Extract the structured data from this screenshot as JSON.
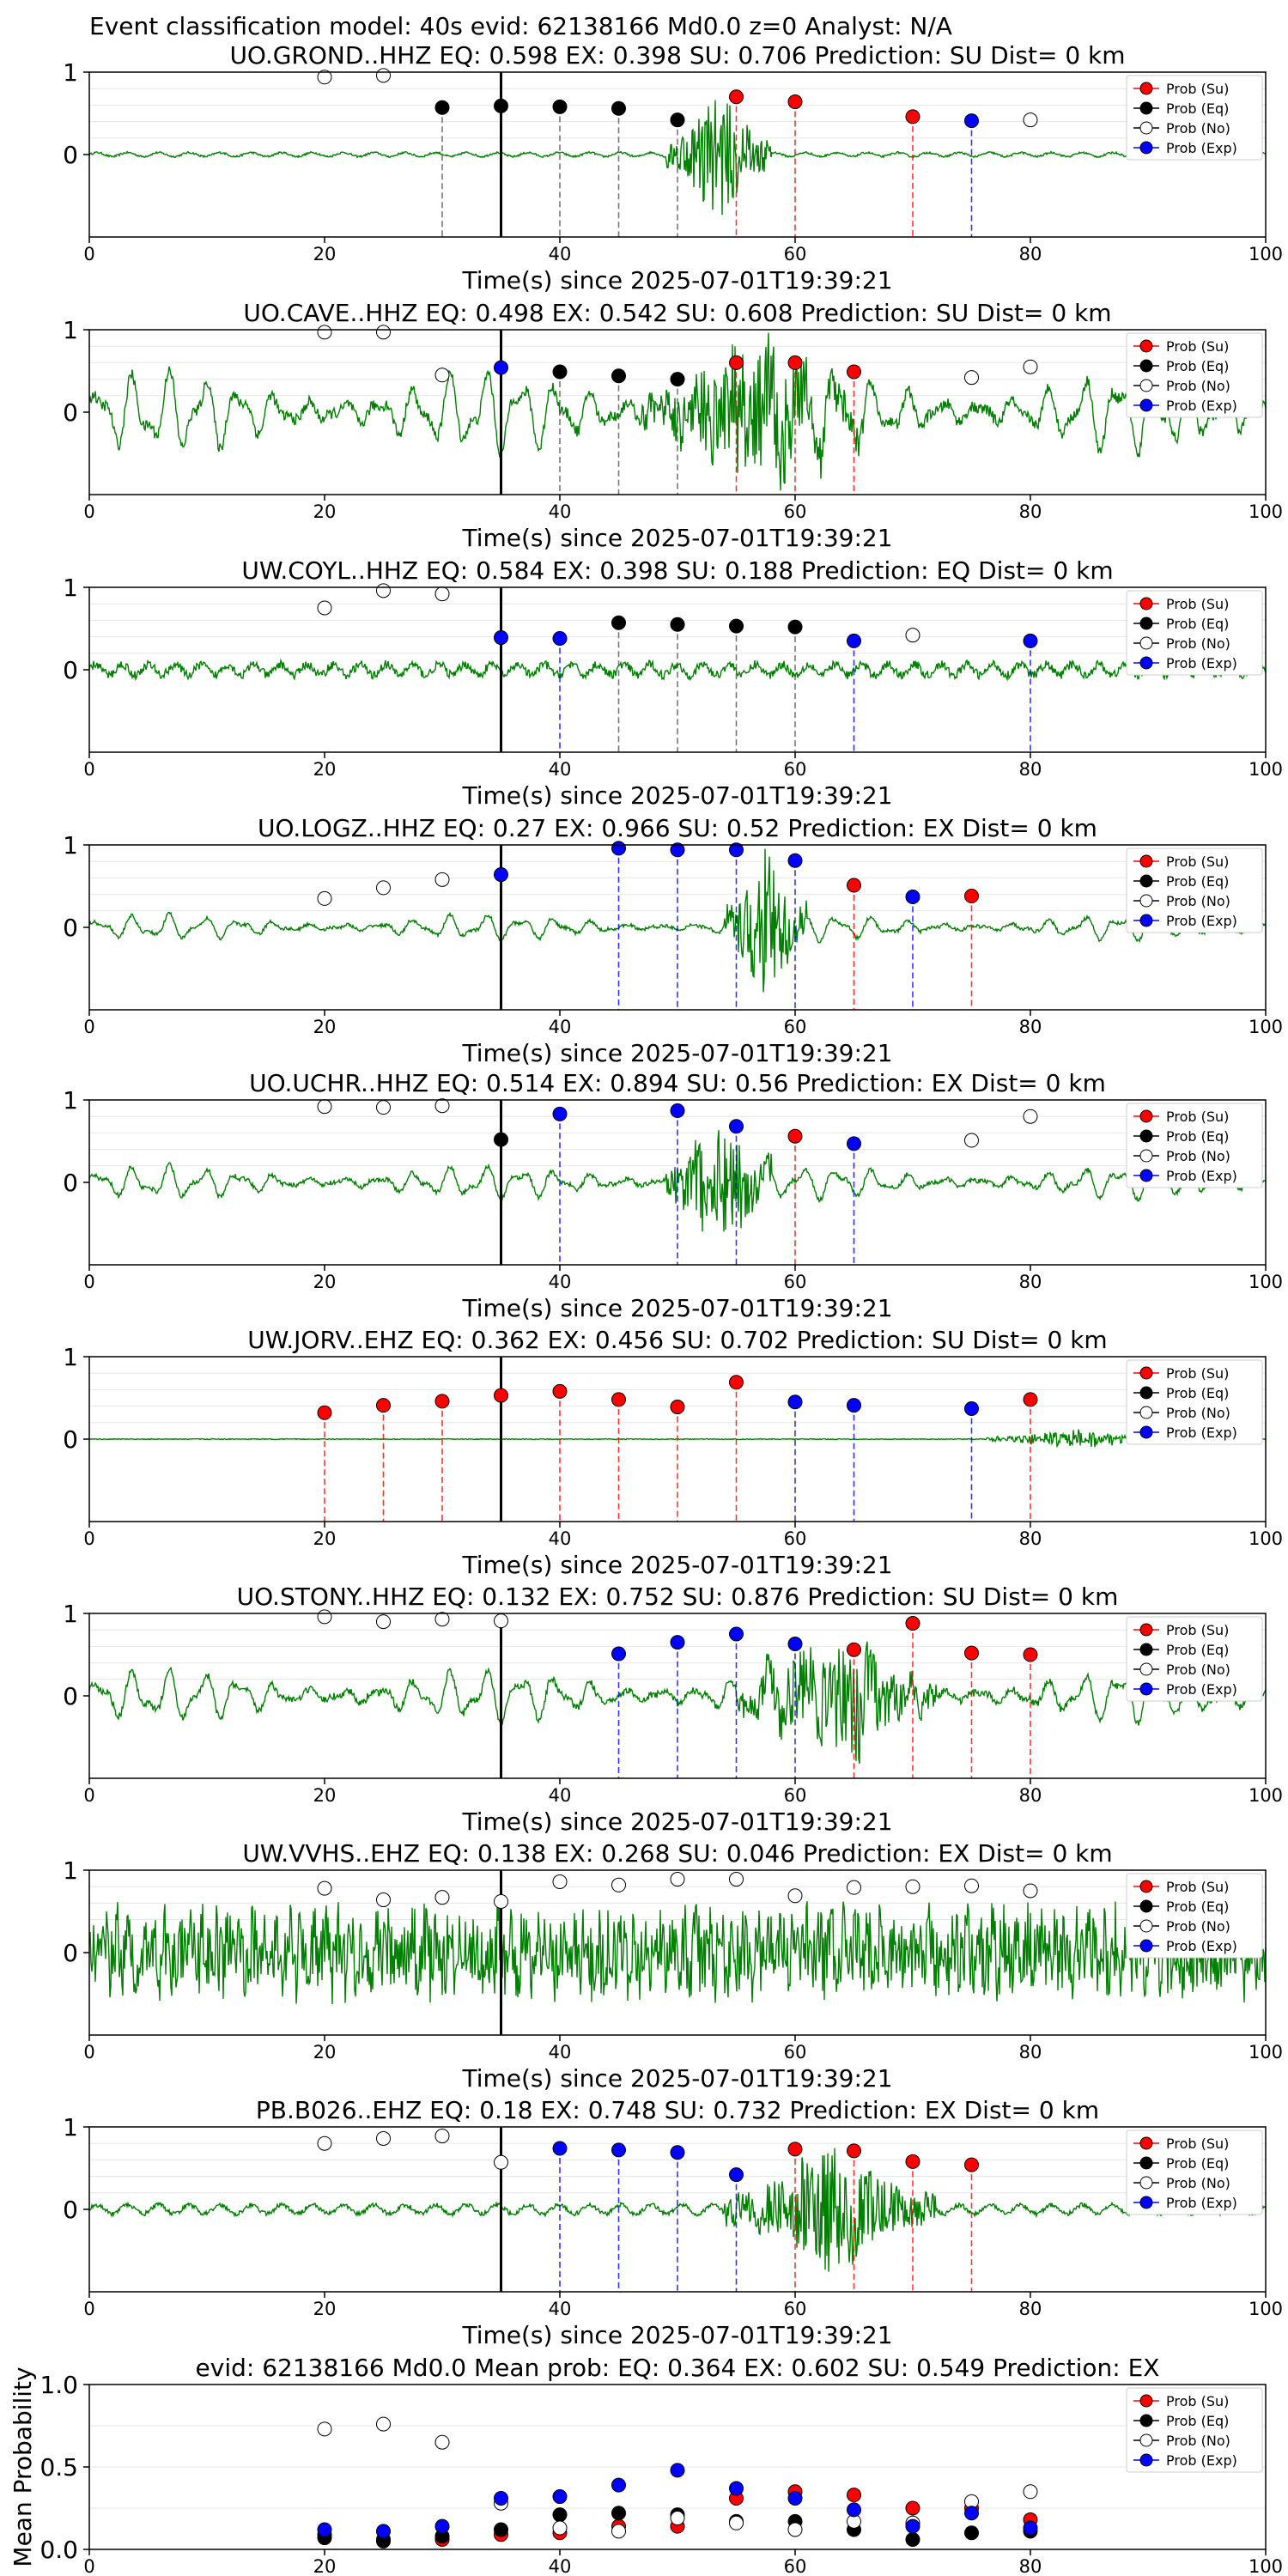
{
  "suptitle": "Event classification model: 40s evid: 62138166 Md0.0 z=0 Analyst: N/A",
  "xlabel": "Time(s) since 2025-07-01T19:39:21",
  "legend": [
    "Prob (Su)",
    "Prob (Eq)",
    "Prob (No)",
    "Prob (Exp)"
  ],
  "colors": {
    "su": "#ff0000",
    "eq": "#000000",
    "no": "#ffffff",
    "exp": "#0000ff",
    "trace": "#008000",
    "su_line": "#ff0000",
    "eq_line": "#555555",
    "exp_line": "#0000ff"
  },
  "chart_data": [
    {
      "type": "scatter",
      "title": "UO.GROND..HHZ   EQ: 0.598  EX: 0.398  SU: 0.706   Prediction: SU    Dist= 0 km",
      "xlim": [
        0,
        100
      ],
      "ylim": [
        -1,
        1
      ],
      "xticks": [
        0,
        20,
        40,
        60,
        80,
        100
      ],
      "yticks": [
        0,
        1
      ],
      "trace": {
        "style": "burst",
        "amp": 0.04,
        "burst": [
          49,
          58
        ],
        "burst_amp": 0.8
      },
      "event_line": 35,
      "points": [
        {
          "x": 20,
          "p": 0.94,
          "cls": "no"
        },
        {
          "x": 25,
          "p": 0.96,
          "cls": "no"
        },
        {
          "x": 30,
          "p": 0.57,
          "cls": "eq"
        },
        {
          "x": 35,
          "p": 0.59,
          "cls": "eq"
        },
        {
          "x": 40,
          "p": 0.58,
          "cls": "eq"
        },
        {
          "x": 45,
          "p": 0.56,
          "cls": "eq"
        },
        {
          "x": 50,
          "p": 0.42,
          "cls": "eq"
        },
        {
          "x": 55,
          "p": 0.7,
          "cls": "su"
        },
        {
          "x": 60,
          "p": 0.64,
          "cls": "su"
        },
        {
          "x": 70,
          "p": 0.46,
          "cls": "su"
        },
        {
          "x": 75,
          "p": 0.41,
          "cls": "exp"
        },
        {
          "x": 80,
          "p": 0.42,
          "cls": "no"
        }
      ]
    },
    {
      "type": "scatter",
      "title": "UO.CAVE..HHZ  EQ: 0.498  EX: 0.542  SU: 0.608   Prediction: SU    Dist= 0 km",
      "xlim": [
        0,
        100
      ],
      "ylim": [
        -1,
        1
      ],
      "xticks": [
        0,
        20,
        40,
        60,
        80,
        100
      ],
      "yticks": [
        0,
        1
      ],
      "trace": {
        "style": "osc",
        "amp": 0.55,
        "burst": [
          47,
          66
        ],
        "burst_amp": 0.9
      },
      "event_line": 35,
      "points": [
        {
          "x": 20,
          "p": 0.97,
          "cls": "no"
        },
        {
          "x": 25,
          "p": 0.97,
          "cls": "no"
        },
        {
          "x": 30,
          "p": 0.45,
          "cls": "no"
        },
        {
          "x": 35,
          "p": 0.54,
          "cls": "exp"
        },
        {
          "x": 40,
          "p": 0.49,
          "cls": "eq"
        },
        {
          "x": 45,
          "p": 0.44,
          "cls": "eq"
        },
        {
          "x": 50,
          "p": 0.4,
          "cls": "eq"
        },
        {
          "x": 55,
          "p": 0.6,
          "cls": "su"
        },
        {
          "x": 60,
          "p": 0.6,
          "cls": "su"
        },
        {
          "x": 65,
          "p": 0.49,
          "cls": "su"
        },
        {
          "x": 75,
          "p": 0.42,
          "cls": "no"
        },
        {
          "x": 80,
          "p": 0.55,
          "cls": "no"
        }
      ]
    },
    {
      "type": "scatter",
      "title": "UW.COYL..HHZ   EQ: 0.584  EX: 0.398  SU: 0.188   Prediction: EQ    Dist= 0 km",
      "xlim": [
        0,
        100
      ],
      "ylim": [
        -1,
        1
      ],
      "xticks": [
        0,
        20,
        40,
        60,
        80,
        100
      ],
      "yticks": [
        0,
        1
      ],
      "trace": {
        "style": "noise",
        "amp": 0.13,
        "burst": [
          0,
          0
        ],
        "burst_amp": 0
      },
      "event_line": 35,
      "points": [
        {
          "x": 20,
          "p": 0.75,
          "cls": "no"
        },
        {
          "x": 25,
          "p": 0.96,
          "cls": "no"
        },
        {
          "x": 30,
          "p": 0.92,
          "cls": "no"
        },
        {
          "x": 35,
          "p": 0.39,
          "cls": "exp"
        },
        {
          "x": 40,
          "p": 0.38,
          "cls": "exp"
        },
        {
          "x": 45,
          "p": 0.57,
          "cls": "eq"
        },
        {
          "x": 50,
          "p": 0.55,
          "cls": "eq"
        },
        {
          "x": 55,
          "p": 0.53,
          "cls": "eq"
        },
        {
          "x": 60,
          "p": 0.52,
          "cls": "eq"
        },
        {
          "x": 65,
          "p": 0.35,
          "cls": "exp"
        },
        {
          "x": 70,
          "p": 0.42,
          "cls": "no"
        },
        {
          "x": 80,
          "p": 0.35,
          "cls": "exp"
        }
      ]
    },
    {
      "type": "scatter",
      "title": "UO.LOGZ..HHZ   EQ: 0.27  EX: 0.966  SU: 0.52   Prediction: EX    Dist= 0 km",
      "xlim": [
        0,
        100
      ],
      "ylim": [
        -1,
        1
      ],
      "xticks": [
        0,
        20,
        40,
        60,
        80,
        100
      ],
      "yticks": [
        0,
        1
      ],
      "trace": {
        "style": "osc",
        "amp": 0.17,
        "burst": [
          54,
          61
        ],
        "burst_amp": 0.9
      },
      "event_line": 35,
      "points": [
        {
          "x": 20,
          "p": 0.35,
          "cls": "no"
        },
        {
          "x": 25,
          "p": 0.48,
          "cls": "no"
        },
        {
          "x": 30,
          "p": 0.58,
          "cls": "no"
        },
        {
          "x": 35,
          "p": 0.64,
          "cls": "exp"
        },
        {
          "x": 45,
          "p": 0.96,
          "cls": "exp"
        },
        {
          "x": 50,
          "p": 0.94,
          "cls": "exp"
        },
        {
          "x": 55,
          "p": 0.94,
          "cls": "exp"
        },
        {
          "x": 60,
          "p": 0.81,
          "cls": "exp"
        },
        {
          "x": 65,
          "p": 0.51,
          "cls": "su"
        },
        {
          "x": 70,
          "p": 0.37,
          "cls": "exp"
        },
        {
          "x": 75,
          "p": 0.38,
          "cls": "su"
        }
      ]
    },
    {
      "type": "scatter",
      "title": "UO.UCHR..HHZ   EQ: 0.514  EX: 0.894  SU: 0.56   Prediction: EX    Dist= 0 km",
      "xlim": [
        0,
        100
      ],
      "ylim": [
        -1,
        1
      ],
      "xticks": [
        0,
        20,
        40,
        60,
        80,
        100
      ],
      "yticks": [
        0,
        1
      ],
      "trace": {
        "style": "osc",
        "amp": 0.22,
        "burst": [
          49,
          58
        ],
        "burst_amp": 0.85
      },
      "event_line": 35,
      "points": [
        {
          "x": 20,
          "p": 0.92,
          "cls": "no"
        },
        {
          "x": 25,
          "p": 0.91,
          "cls": "no"
        },
        {
          "x": 30,
          "p": 0.93,
          "cls": "no"
        },
        {
          "x": 35,
          "p": 0.52,
          "cls": "eq"
        },
        {
          "x": 40,
          "p": 0.83,
          "cls": "exp"
        },
        {
          "x": 50,
          "p": 0.87,
          "cls": "exp"
        },
        {
          "x": 55,
          "p": 0.68,
          "cls": "exp"
        },
        {
          "x": 60,
          "p": 0.56,
          "cls": "su"
        },
        {
          "x": 65,
          "p": 0.47,
          "cls": "exp"
        },
        {
          "x": 75,
          "p": 0.51,
          "cls": "no"
        },
        {
          "x": 80,
          "p": 0.8,
          "cls": "no"
        }
      ]
    },
    {
      "type": "scatter",
      "title": "UW.JORV..EHZ   EQ: 0.362  EX: 0.456  SU: 0.702   Prediction: SU    Dist= 0 km",
      "xlim": [
        0,
        100
      ],
      "ylim": [
        -1,
        1
      ],
      "xticks": [
        0,
        20,
        40,
        60,
        80,
        100
      ],
      "yticks": [
        0,
        1
      ],
      "trace": {
        "style": "flat",
        "amp": 0.01,
        "burst": [
          76,
          92
        ],
        "burst_amp": 0.12
      },
      "event_line": 35,
      "points": [
        {
          "x": 20,
          "p": 0.32,
          "cls": "su"
        },
        {
          "x": 25,
          "p": 0.41,
          "cls": "su"
        },
        {
          "x": 30,
          "p": 0.46,
          "cls": "su"
        },
        {
          "x": 35,
          "p": 0.53,
          "cls": "su"
        },
        {
          "x": 40,
          "p": 0.58,
          "cls": "su"
        },
        {
          "x": 45,
          "p": 0.48,
          "cls": "su"
        },
        {
          "x": 50,
          "p": 0.39,
          "cls": "su"
        },
        {
          "x": 55,
          "p": 0.69,
          "cls": "su"
        },
        {
          "x": 60,
          "p": 0.45,
          "cls": "exp"
        },
        {
          "x": 65,
          "p": 0.41,
          "cls": "exp"
        },
        {
          "x": 75,
          "p": 0.37,
          "cls": "exp"
        },
        {
          "x": 80,
          "p": 0.48,
          "cls": "su"
        }
      ]
    },
    {
      "type": "scatter",
      "title": "UO.STONY..HHZ   EQ: 0.132  EX: 0.752  SU: 0.876   Prediction: SU    Dist= 0 km",
      "xlim": [
        0,
        100
      ],
      "ylim": [
        -1,
        1
      ],
      "xticks": [
        0,
        20,
        40,
        60,
        80,
        100
      ],
      "yticks": [
        0,
        1
      ],
      "trace": {
        "style": "osc",
        "amp": 0.35,
        "burst": [
          55,
          72
        ],
        "burst_amp": 0.75
      },
      "event_line": 35,
      "points": [
        {
          "x": 20,
          "p": 0.96,
          "cls": "no"
        },
        {
          "x": 25,
          "p": 0.9,
          "cls": "no"
        },
        {
          "x": 30,
          "p": 0.93,
          "cls": "no"
        },
        {
          "x": 35,
          "p": 0.91,
          "cls": "no"
        },
        {
          "x": 45,
          "p": 0.51,
          "cls": "exp"
        },
        {
          "x": 50,
          "p": 0.65,
          "cls": "exp"
        },
        {
          "x": 55,
          "p": 0.75,
          "cls": "exp"
        },
        {
          "x": 60,
          "p": 0.63,
          "cls": "exp"
        },
        {
          "x": 65,
          "p": 0.56,
          "cls": "su"
        },
        {
          "x": 70,
          "p": 0.88,
          "cls": "su"
        },
        {
          "x": 75,
          "p": 0.52,
          "cls": "su"
        },
        {
          "x": 80,
          "p": 0.5,
          "cls": "su"
        }
      ]
    },
    {
      "type": "scatter",
      "title": "UW.VVHS..EHZ   EQ: 0.138  EX: 0.268  SU: 0.046   Prediction: EX    Dist= 0 km",
      "xlim": [
        0,
        100
      ],
      "ylim": [
        -1,
        1
      ],
      "xticks": [
        0,
        20,
        40,
        60,
        80,
        100
      ],
      "yticks": [
        0,
        1
      ],
      "trace": {
        "style": "heavy",
        "amp": 0.55,
        "burst": [
          0,
          0
        ],
        "burst_amp": 0
      },
      "event_line": 35,
      "points": [
        {
          "x": 20,
          "p": 0.78,
          "cls": "no"
        },
        {
          "x": 25,
          "p": 0.64,
          "cls": "no"
        },
        {
          "x": 30,
          "p": 0.67,
          "cls": "no"
        },
        {
          "x": 35,
          "p": 0.62,
          "cls": "no"
        },
        {
          "x": 40,
          "p": 0.86,
          "cls": "no"
        },
        {
          "x": 45,
          "p": 0.82,
          "cls": "no"
        },
        {
          "x": 50,
          "p": 0.89,
          "cls": "no"
        },
        {
          "x": 55,
          "p": 0.89,
          "cls": "no"
        },
        {
          "x": 60,
          "p": 0.69,
          "cls": "no"
        },
        {
          "x": 65,
          "p": 0.79,
          "cls": "no"
        },
        {
          "x": 70,
          "p": 0.8,
          "cls": "no"
        },
        {
          "x": 75,
          "p": 0.81,
          "cls": "no"
        },
        {
          "x": 80,
          "p": 0.75,
          "cls": "no"
        }
      ]
    },
    {
      "type": "scatter",
      "title": "PB.B026..EHZ   EQ: 0.18  EX: 0.748  SU: 0.732   Prediction: EX    Dist= 0 km",
      "xlim": [
        0,
        100
      ],
      "ylim": [
        -1,
        1
      ],
      "xticks": [
        0,
        20,
        40,
        60,
        80,
        100
      ],
      "yticks": [
        0,
        1
      ],
      "trace": {
        "style": "burst",
        "amp": 0.09,
        "burst": [
          54,
          72
        ],
        "burst_amp": 0.8
      },
      "event_line": 35,
      "points": [
        {
          "x": 20,
          "p": 0.8,
          "cls": "no"
        },
        {
          "x": 25,
          "p": 0.86,
          "cls": "no"
        },
        {
          "x": 30,
          "p": 0.89,
          "cls": "no"
        },
        {
          "x": 35,
          "p": 0.57,
          "cls": "no"
        },
        {
          "x": 40,
          "p": 0.74,
          "cls": "exp"
        },
        {
          "x": 45,
          "p": 0.72,
          "cls": "exp"
        },
        {
          "x": 50,
          "p": 0.69,
          "cls": "exp"
        },
        {
          "x": 55,
          "p": 0.42,
          "cls": "exp"
        },
        {
          "x": 60,
          "p": 0.73,
          "cls": "su"
        },
        {
          "x": 65,
          "p": 0.71,
          "cls": "su"
        },
        {
          "x": 70,
          "p": 0.58,
          "cls": "su"
        },
        {
          "x": 75,
          "p": 0.54,
          "cls": "su"
        }
      ]
    },
    {
      "type": "scatter",
      "title": "evid: 62138166  Md0.0    Mean prob:   EQ: 0.364  EX: 0.602  SU: 0.549   Prediction: EX",
      "ylabel": "Mean Probability",
      "xlim": [
        0,
        100
      ],
      "ylim": [
        0,
        1
      ],
      "xticks": [
        0,
        20,
        40,
        60,
        80,
        100
      ],
      "yticks": [
        0.0,
        0.5,
        1.0
      ],
      "ytick_labels": [
        "0.0",
        "0.5",
        "1.0"
      ],
      "x": [
        20,
        25,
        30,
        35,
        40,
        45,
        50,
        55,
        60,
        65,
        70,
        75,
        80
      ],
      "series": [
        {
          "name": "Prob (Su)",
          "cls": "su",
          "values": [
            0.09,
            0.06,
            0.06,
            0.09,
            0.1,
            0.14,
            0.14,
            0.31,
            0.35,
            0.33,
            0.25,
            0.25,
            0.18
          ]
        },
        {
          "name": "Prob (Eq)",
          "cls": "eq",
          "values": [
            0.07,
            0.05,
            0.08,
            0.12,
            0.21,
            0.22,
            0.21,
            0.17,
            0.17,
            0.12,
            0.06,
            0.1,
            0.11
          ]
        },
        {
          "name": "Prob (No)",
          "cls": "no",
          "values": [
            0.73,
            0.76,
            0.65,
            0.28,
            0.13,
            0.11,
            0.19,
            0.16,
            0.12,
            0.17,
            0.16,
            0.29,
            0.35
          ]
        },
        {
          "name": "Prob (Exp)",
          "cls": "exp",
          "values": [
            0.12,
            0.11,
            0.14,
            0.31,
            0.32,
            0.39,
            0.48,
            0.37,
            0.31,
            0.24,
            0.14,
            0.22,
            0.13
          ]
        }
      ]
    }
  ]
}
